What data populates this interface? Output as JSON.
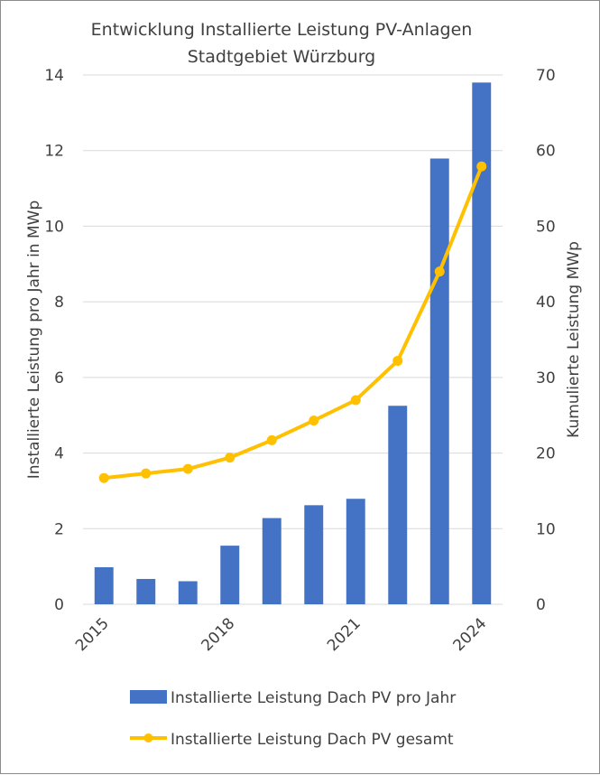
{
  "chart_data": {
    "type": "bar+line",
    "title": [
      "Entwicklung Installierte Leistung PV-Anlagen",
      "Stadtgebiet Würzburg"
    ],
    "categories": [
      "2015",
      "2016",
      "2017",
      "2018",
      "2019",
      "2020",
      "2021",
      "2022",
      "2023",
      "2024"
    ],
    "x_tick_labels": [
      "2015",
      "2018",
      "2021",
      "2024"
    ],
    "y_left": {
      "label": "Installierte Leistung pro Jahr in MWp",
      "range": [
        0,
        14
      ],
      "ticks": [
        "0",
        "2",
        "4",
        "6",
        "8",
        "10",
        "12",
        "14"
      ]
    },
    "y_right": {
      "label": "Kumulierte Leistung MWp",
      "range": [
        0,
        70
      ],
      "ticks": [
        "0",
        "10",
        "20",
        "30",
        "40",
        "50",
        "60",
        "70"
      ]
    },
    "grid": true,
    "legend_position": "bottom",
    "series": [
      {
        "name": "Installierte Leistung Dach PV pro Jahr",
        "type": "bar",
        "axis": "left",
        "color": "#4472C4",
        "values": [
          0.98,
          0.67,
          0.61,
          1.55,
          2.28,
          2.62,
          2.79,
          5.25,
          11.79,
          13.8
        ]
      },
      {
        "name": "Installierte Leistung Dach PV gesamt",
        "type": "line",
        "axis": "right",
        "color": "#FFC000",
        "values": [
          16.7,
          17.3,
          17.9,
          19.4,
          21.7,
          24.3,
          27.0,
          32.2,
          44.0,
          57.9
        ]
      }
    ]
  }
}
